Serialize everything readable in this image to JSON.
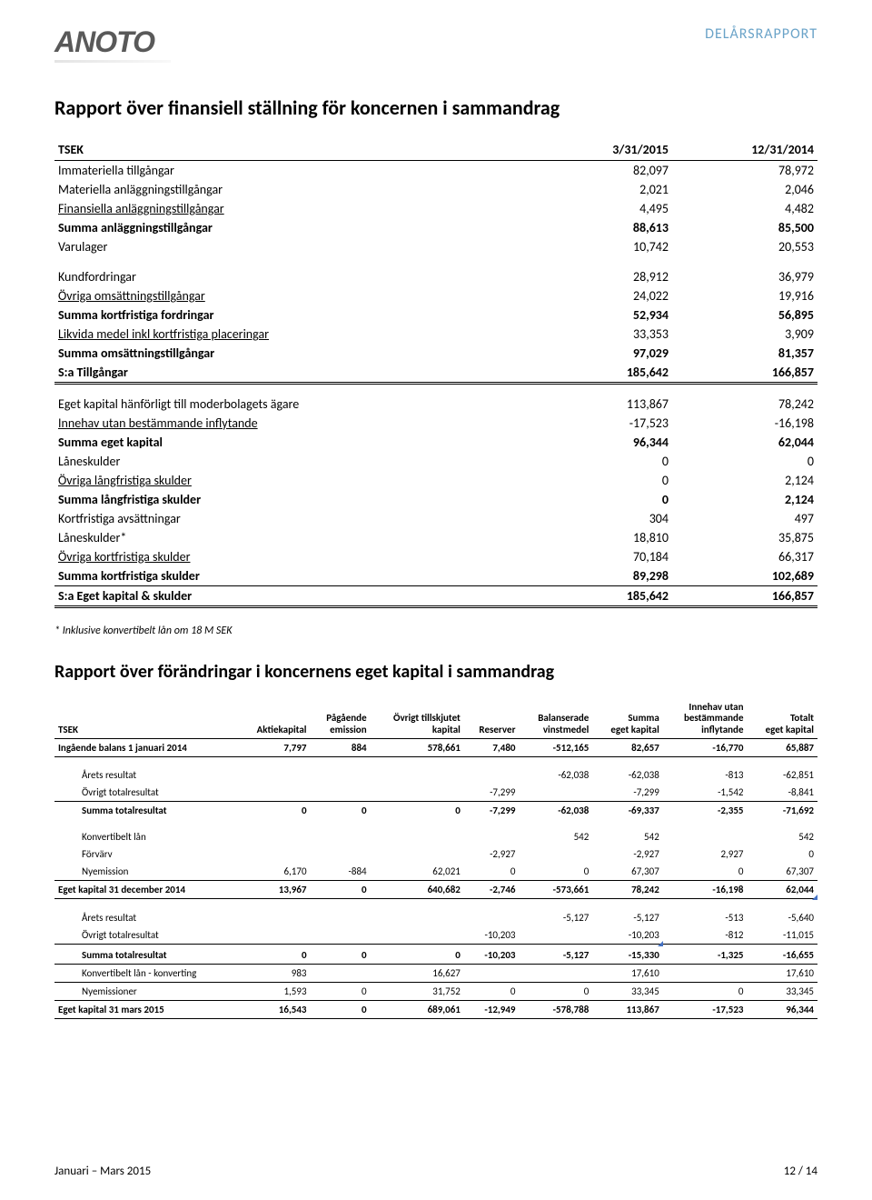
{
  "header": {
    "logo": "ANOTO",
    "doc_type": "DELÅRSRAPPORT"
  },
  "title1": "Rapport över finansiell ställning för koncernen i sammandrag",
  "t1": {
    "head": {
      "c0": "TSEK",
      "c1": "3/31/2015",
      "c2": "12/31/2014"
    },
    "rows": [
      {
        "k": "r",
        "label": "Immateriella tillgångar",
        "v1": "82,097",
        "v2": "78,972"
      },
      {
        "k": "r",
        "label": "Materiella anläggningstillgångar",
        "v1": "2,021",
        "v2": "2,046"
      },
      {
        "k": "ul",
        "label": "Finansiella anläggningstillgångar",
        "v1": "4,495",
        "v2": "4,482"
      },
      {
        "k": "sum",
        "label": "Summa anläggningstillgångar",
        "v1": "88,613",
        "v2": "85,500"
      },
      {
        "k": "r",
        "label": "Varulager",
        "v1": "10,742",
        "v2": "20,553"
      },
      {
        "k": "gap"
      },
      {
        "k": "r",
        "label": "Kundfordringar",
        "v1": "28,912",
        "v2": "36,979"
      },
      {
        "k": "ul",
        "label": "Övriga omsättningstillgångar",
        "v1": "24,022",
        "v2": "19,916"
      },
      {
        "k": "sum",
        "label": "Summa kortfristiga fordringar",
        "v1": "52,934",
        "v2": "56,895"
      },
      {
        "k": "ul",
        "label": "Likvida medel inkl kortfristiga placeringar",
        "v1": "33,353",
        "v2": "3,909"
      },
      {
        "k": "sum",
        "label": "Summa omsättningstillgångar",
        "v1": "97,029",
        "v2": "81,357"
      },
      {
        "k": "sum dbl",
        "label": "S:a Tillgångar",
        "v1": "185,642",
        "v2": "166,857"
      },
      {
        "k": "gap"
      },
      {
        "k": "r",
        "label": "Eget kapital hänförligt till moderbolagets ägare",
        "v1": "113,867",
        "v2": "78,242"
      },
      {
        "k": "ul",
        "label": "Innehav utan bestämmande inflytande",
        "v1": "-17,523",
        "v2": "-16,198"
      },
      {
        "k": "sum",
        "label": "Summa eget kapital",
        "v1": "96,344",
        "v2": "62,044"
      },
      {
        "k": "r",
        "label": "Låneskulder",
        "v1": "0",
        "v2": "0"
      },
      {
        "k": "ul",
        "label": "Övriga långfristiga skulder",
        "v1": "0",
        "v2": "2,124"
      },
      {
        "k": "sum",
        "label": "Summa långfristiga skulder",
        "v1": "0",
        "v2": "2,124"
      },
      {
        "k": "r",
        "label": "Kortfristiga avsättningar",
        "v1": "304",
        "v2": "497"
      },
      {
        "k": "r",
        "label": "Låneskulder*",
        "v1": "18,810",
        "v2": "35,875"
      },
      {
        "k": "ul",
        "label": "Övriga kortfristiga skulder",
        "v1": "70,184",
        "v2": "66,317"
      },
      {
        "k": "sum",
        "label": "Summa kortfristiga skulder",
        "v1": "89,298",
        "v2": "102,689"
      },
      {
        "k": "sum dbl mid",
        "label": "S:a Eget kapital & skulder",
        "v1": "185,642",
        "v2": "166,857"
      }
    ]
  },
  "footnote": "* Inklusive konvertibelt lån om 18 M SEK",
  "title2": "Rapport över förändringar i koncernens eget kapital i sammandrag",
  "t2": {
    "head": {
      "c0": "TSEK",
      "c1": "Aktiekapital",
      "c2a": "Pågående",
      "c2b": "emission",
      "c3a": "Övrigt tillskjutet",
      "c3b": "kapital",
      "c4": "Reserver",
      "c5a": "Balanserade",
      "c5b": "vinstmedel",
      "c6a": "Summa",
      "c6b": "eget kapital",
      "c7a": "Innehav utan",
      "c7b": "bestämmande",
      "c7c": "inflytande",
      "c8a": "Totalt",
      "c8b": "eget kapital"
    },
    "rows": [
      {
        "k": "bold line-b",
        "cells": [
          "Ingående balans 1 januari 2014",
          "7,797",
          "884",
          "578,661",
          "7,480",
          "-512,165",
          "82,657",
          "-16,770",
          "65,887"
        ]
      },
      {
        "k": "gap"
      },
      {
        "k": "r indent",
        "cells": [
          "Årets resultat",
          "",
          "",
          "",
          "",
          "-62,038",
          "-62,038",
          "-813",
          "-62,851"
        ]
      },
      {
        "k": "r indent",
        "cells": [
          "Övrigt totalresultat",
          "",
          "",
          "",
          "-7,299",
          "",
          "-7,299",
          "-1,542",
          "-8,841"
        ]
      },
      {
        "k": "bold line-t indent",
        "cells": [
          "Summa totalresultat",
          "0",
          "0",
          "0",
          "-7,299",
          "-62,038",
          "-69,337",
          "-2,355",
          "-71,692"
        ]
      },
      {
        "k": "gap"
      },
      {
        "k": "r indent",
        "cells": [
          "Konvertibelt lån",
          "",
          "",
          "",
          "",
          "542",
          "542",
          "",
          "542"
        ]
      },
      {
        "k": "r indent",
        "cells": [
          "Förvärv",
          "",
          "",
          "",
          "-2,927",
          "",
          "-2,927",
          "2,927",
          "0"
        ]
      },
      {
        "k": "r indent",
        "cells": [
          "Nyemission",
          "6,170",
          "-884",
          "62,021",
          "0",
          "0",
          "67,307",
          "0",
          "67,307"
        ]
      },
      {
        "k": "bold line-t line-b",
        "cells": [
          "Eget kapital 31 december 2014",
          "13,967",
          "0",
          "640,682",
          "-2,746",
          "-573,661",
          "78,242",
          "-16,198",
          "62,044"
        ]
      },
      {
        "k": "corner-row"
      },
      {
        "k": "gap"
      },
      {
        "k": "r indent",
        "cells": [
          "Årets resultat",
          "",
          "",
          "",
          "",
          "-5,127",
          "-5,127",
          "-513",
          "-5,640"
        ]
      },
      {
        "k": "r indent line-b",
        "cells": [
          "Övrigt totalresultat",
          "",
          "",
          "",
          "-10,203",
          "",
          "-10,203",
          "-812",
          "-11,015"
        ]
      },
      {
        "k": "corner-row2"
      },
      {
        "k": "bold indent line-b",
        "cells": [
          "Summa totalresultat",
          "0",
          "0",
          "0",
          "-10,203",
          "-5,127",
          "-15,330",
          "-1,325",
          "-16,655"
        ]
      },
      {
        "k": "r indent line-b",
        "cells": [
          "Konvertibelt lån - konverting",
          "983",
          "",
          "16,627",
          "",
          "",
          "17,610",
          "",
          "17,610"
        ]
      },
      {
        "k": "r indent line-b",
        "cells": [
          "Nyemissioner",
          "1,593",
          "0",
          "31,752",
          "0",
          "0",
          "33,345",
          "0",
          "33,345"
        ]
      },
      {
        "k": "bold line-b",
        "cells": [
          "Eget kapital 31 mars 2015",
          "16,543",
          "0",
          "689,061",
          "-12,949",
          "-578,788",
          "113,867",
          "-17,523",
          "96,344"
        ]
      }
    ]
  },
  "footer": {
    "left": "Januari – Mars 2015",
    "right": "12 / 14"
  },
  "colors": {
    "accent": "#6aa3c8",
    "corner": "#4472c4",
    "text": "#000000",
    "logo": "#595959",
    "bg": "#ffffff"
  }
}
